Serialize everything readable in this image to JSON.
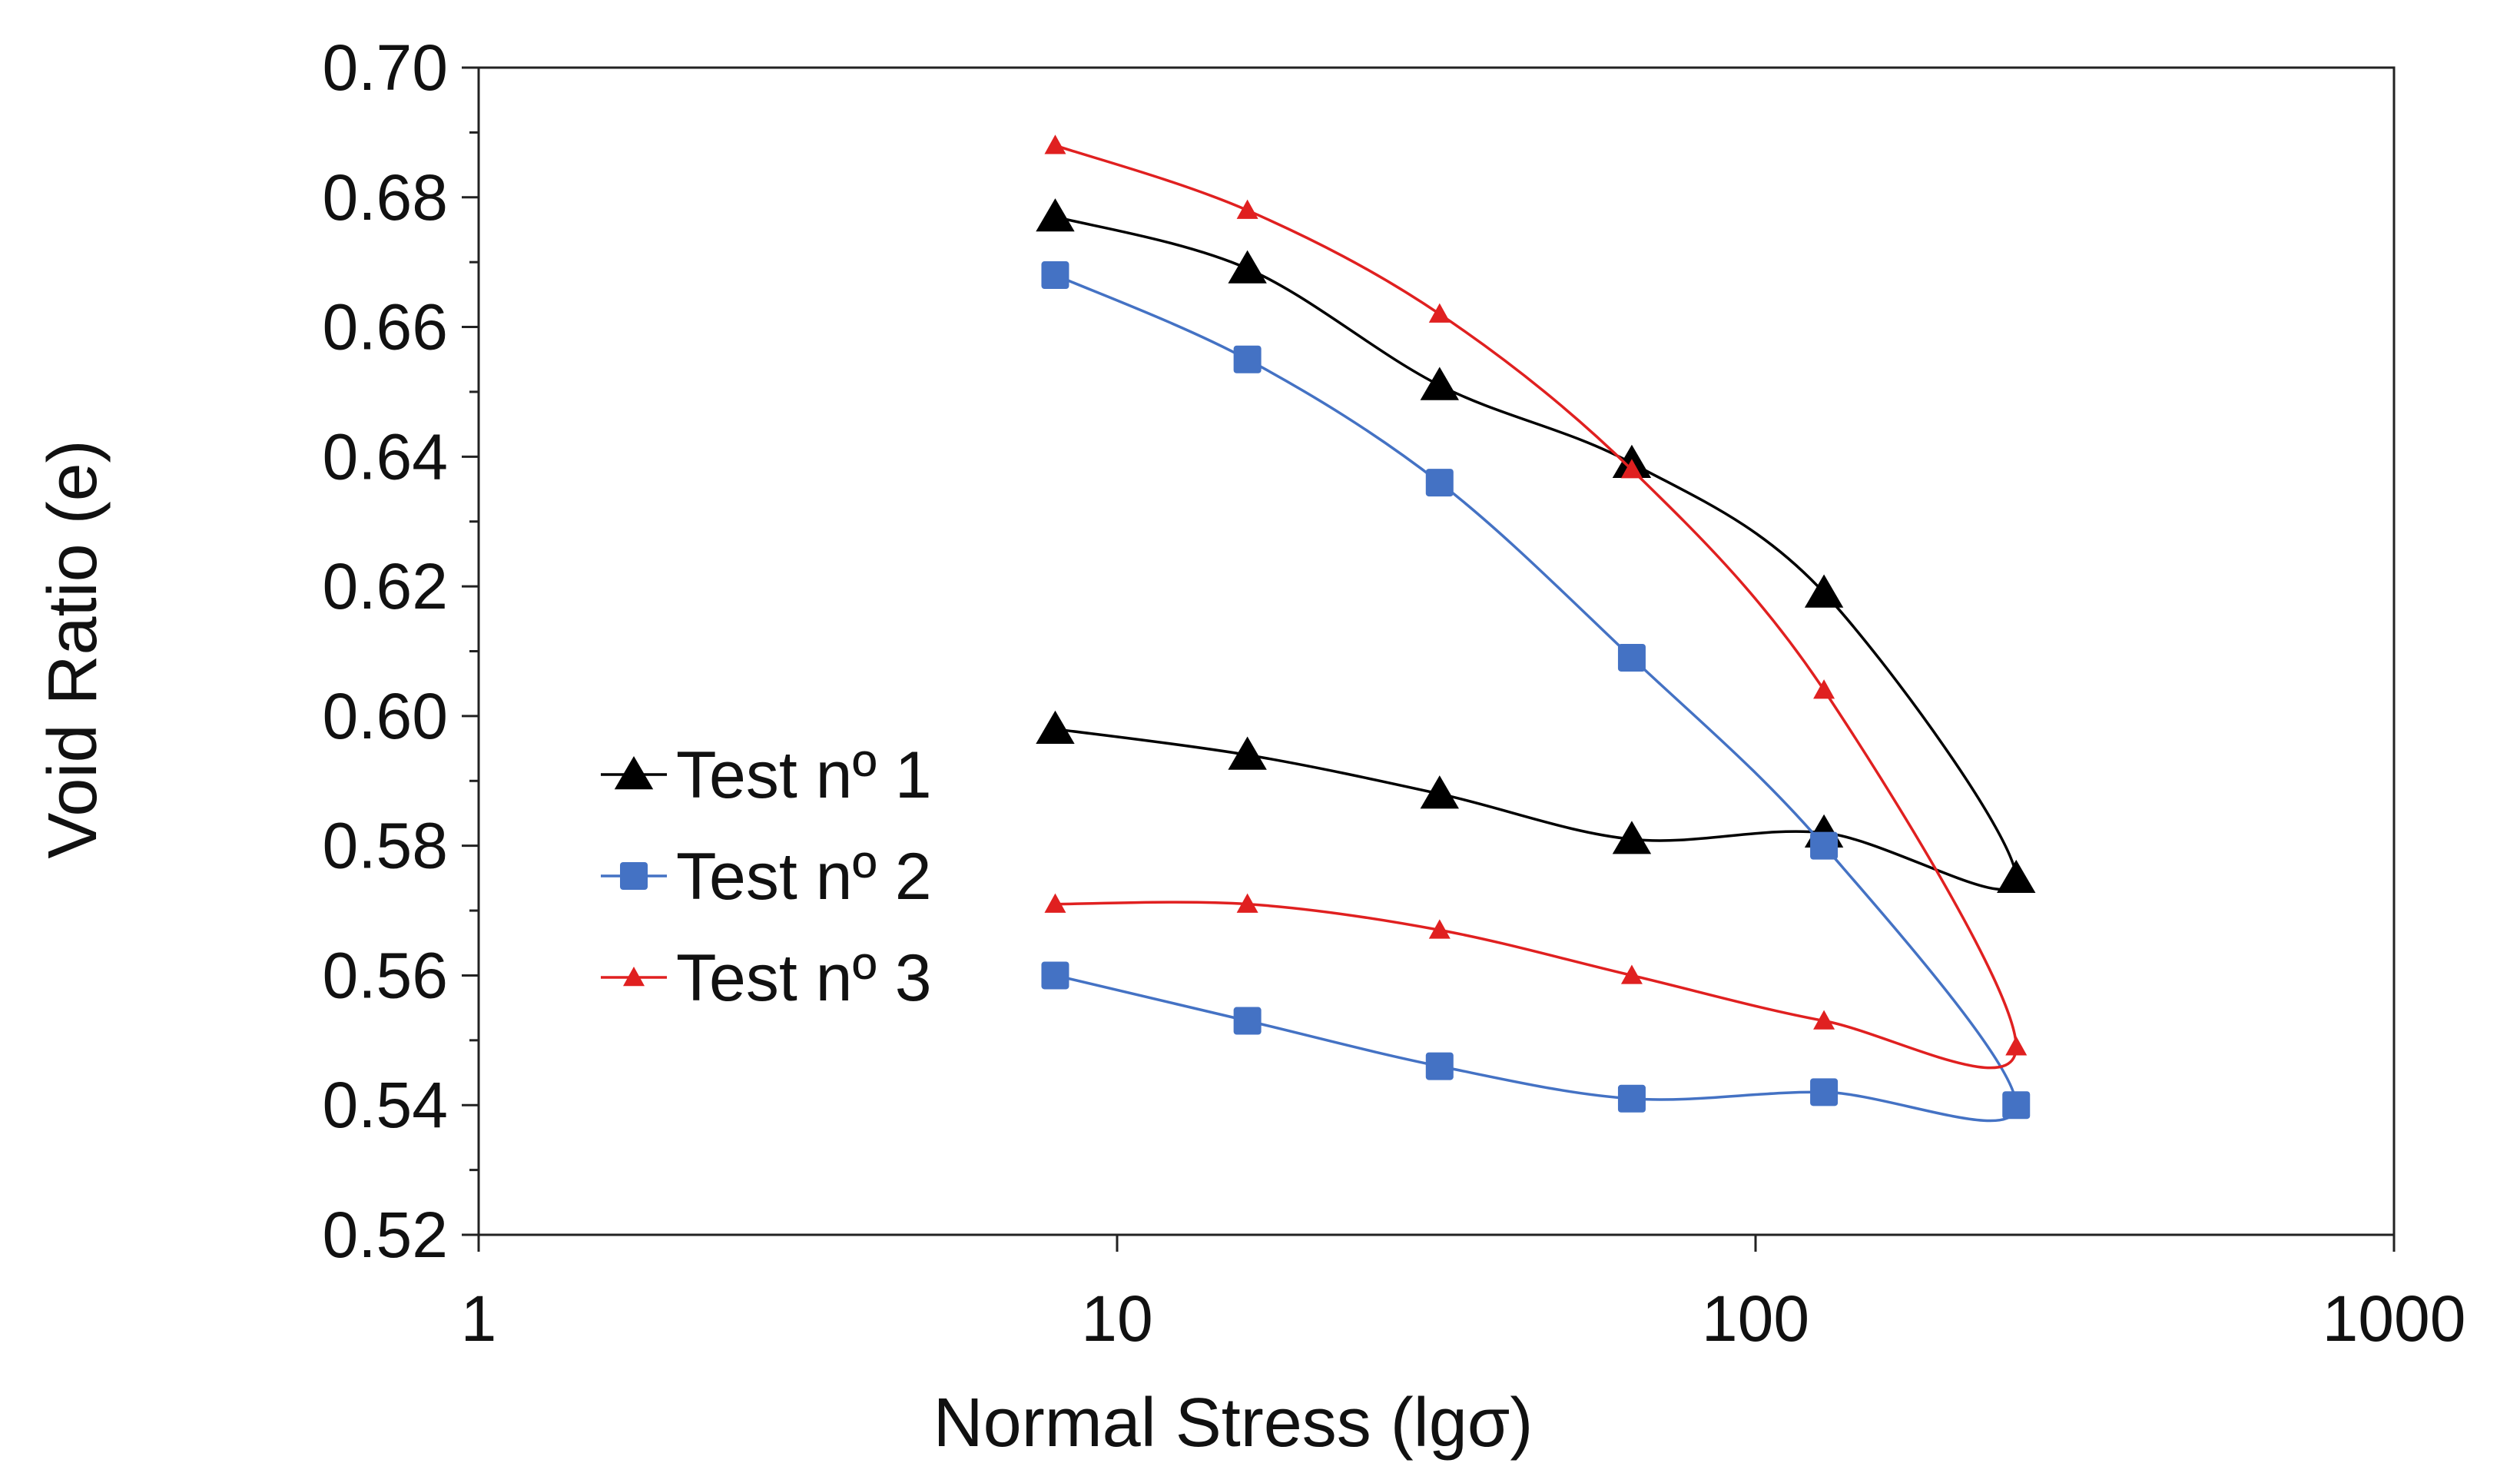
{
  "chart_data": {
    "type": "scatter",
    "title": "",
    "xlabel": "Normal Stress (lgσ)",
    "ylabel": "Void Ratio (e)",
    "xscale": "log",
    "xlim": [
      1,
      1000
    ],
    "ylim": [
      0.52,
      0.7
    ],
    "xticks": [
      1,
      10,
      100,
      1000
    ],
    "xtick_labels": [
      "1",
      "10",
      "100",
      "1000"
    ],
    "yticks": [
      0.52,
      0.54,
      0.56,
      0.58,
      0.6,
      0.62,
      0.64,
      0.66,
      0.68,
      0.7
    ],
    "ytick_labels": [
      "0.52",
      "0.54",
      "0.56",
      "0.58",
      "0.60",
      "0.62",
      "0.64",
      "0.66",
      "0.68",
      "0.70"
    ],
    "grid": false,
    "legend_position": "left",
    "series": [
      {
        "name": "Test nº 1",
        "color": "#000000",
        "marker": "triangle",
        "x": [
          8,
          16,
          32,
          64,
          128,
          256,
          128,
          64,
          32,
          16,
          8
        ],
        "y": [
          0.677,
          0.669,
          0.651,
          0.639,
          0.619,
          0.575,
          0.582,
          0.581,
          0.588,
          0.594,
          0.598
        ]
      },
      {
        "name": "Test nº 2",
        "color": "#4472C4",
        "marker": "square",
        "x": [
          8,
          16,
          32,
          64,
          128,
          256,
          128,
          64,
          32,
          16,
          8
        ],
        "y": [
          0.668,
          0.655,
          0.636,
          0.609,
          0.58,
          0.54,
          0.542,
          0.541,
          0.546,
          0.553,
          0.56
        ]
      },
      {
        "name": "Test nº 3",
        "color": "#E02020",
        "marker": "small-triangle",
        "x": [
          8,
          16,
          32,
          64,
          128,
          256,
          128,
          64,
          32,
          16,
          8
        ],
        "y": [
          0.688,
          0.678,
          0.662,
          0.638,
          0.604,
          0.549,
          0.553,
          0.56,
          0.567,
          0.571,
          0.571
        ]
      }
    ]
  }
}
